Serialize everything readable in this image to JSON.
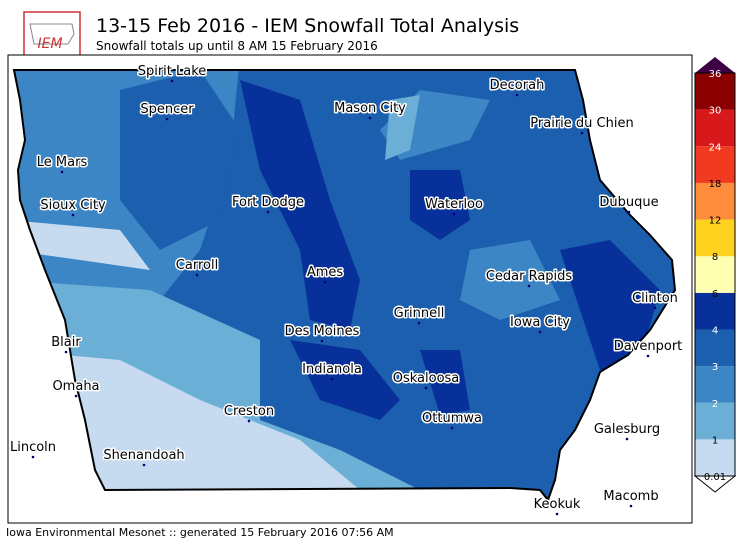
{
  "header": {
    "title": "13-15 Feb 2016 - IEM Snowfall Total Analysis",
    "subtitle": "Snowfall totals up until 8 AM 15 February 2016",
    "logo": "IEM"
  },
  "cities": [
    "Spirit Lake",
    "Spencer",
    "Mason City",
    "Decorah",
    "Prairie du Chien",
    "Le Mars",
    "Sioux City",
    "Fort Dodge",
    "Waterloo",
    "Dubuque",
    "Carroll",
    "Ames",
    "Cedar Rapids",
    "Clinton",
    "Grinnell",
    "Iowa City",
    "Des Moines",
    "Blair",
    "Davenport",
    "Indianola",
    "Oskaloosa",
    "Omaha",
    "Creston",
    "Ottumwa",
    "Galesburg",
    "Lincoln",
    "Shenandoah",
    "Macomb",
    "Keokuk"
  ],
  "legend": {
    "levels": [
      0.01,
      1,
      2,
      3,
      4,
      6,
      8,
      12,
      18,
      24,
      30,
      36
    ],
    "colors": [
      "#c6dbef",
      "#6baed6",
      "#3c86c6",
      "#1c5fae",
      "#08309a",
      "#ffffb2",
      "#ffd21f",
      "#fd8d3c",
      "#f03b20",
      "#d7191c",
      "#8b0000",
      "#3d0045"
    ]
  },
  "footer": "Iowa Environmental Mesonet :: generated 15 February 2016 07:56 AM"
}
